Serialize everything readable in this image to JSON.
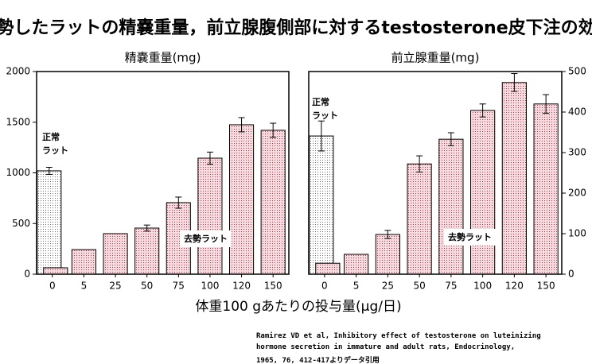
{
  "title": "去勢したラットの精嚢重量，前立腺腹側部に対するtestosterone皮下注の効果",
  "x_label": "体重100 gあたりの投与量(μg/日)",
  "source": [
    "Ramirez VD et al, Inhibitory effect of testosterone on luteinizing",
    "hormone secretion in immature and adult rats, Endocrinology,",
    "1965, 76, 412-417よりデータ引用"
  ],
  "chart_data": [
    {
      "type": "bar",
      "title": "精嚢重量(mg)",
      "categories": [
        "0",
        "5",
        "25",
        "50",
        "75",
        "100",
        "120",
        "150"
      ],
      "series": [
        {
          "name": "正常\nラット",
          "color": "#707070",
          "values": [
            1020,
            null,
            null,
            null,
            null,
            null,
            null,
            null
          ],
          "errors": [
            35,
            null,
            null,
            null,
            null,
            null,
            null,
            null
          ]
        },
        {
          "name": "去勢ラット",
          "color": "#c03048",
          "values": [
            63,
            243,
            400,
            455,
            706,
            1145,
            1475,
            1420
          ],
          "errors": [
            null,
            null,
            null,
            30,
            55,
            60,
            70,
            70
          ]
        }
      ],
      "ylim": [
        0,
        2000
      ],
      "yticks": [
        0,
        500,
        1000,
        1500,
        2000
      ],
      "y_axis_side": "left"
    },
    {
      "type": "bar",
      "title": "前立腺重量(mg)",
      "categories": [
        "0",
        "5",
        "25",
        "50",
        "75",
        "100",
        "120",
        "150"
      ],
      "series": [
        {
          "name": "正常\nラット",
          "color": "#707070",
          "values": [
            341,
            null,
            null,
            null,
            null,
            null,
            null,
            null
          ],
          "errors": [
            37,
            null,
            null,
            null,
            null,
            null,
            null,
            null
          ]
        },
        {
          "name": "去勢ラット",
          "color": "#c03048",
          "values": [
            27,
            49,
            98,
            272,
            333,
            404,
            473,
            420
          ],
          "errors": [
            null,
            null,
            10,
            20,
            16,
            16,
            22,
            23
          ]
        }
      ],
      "ylim": [
        0,
        500
      ],
      "yticks": [
        0,
        100,
        200,
        300,
        400,
        500
      ],
      "y_axis_side": "right"
    }
  ]
}
